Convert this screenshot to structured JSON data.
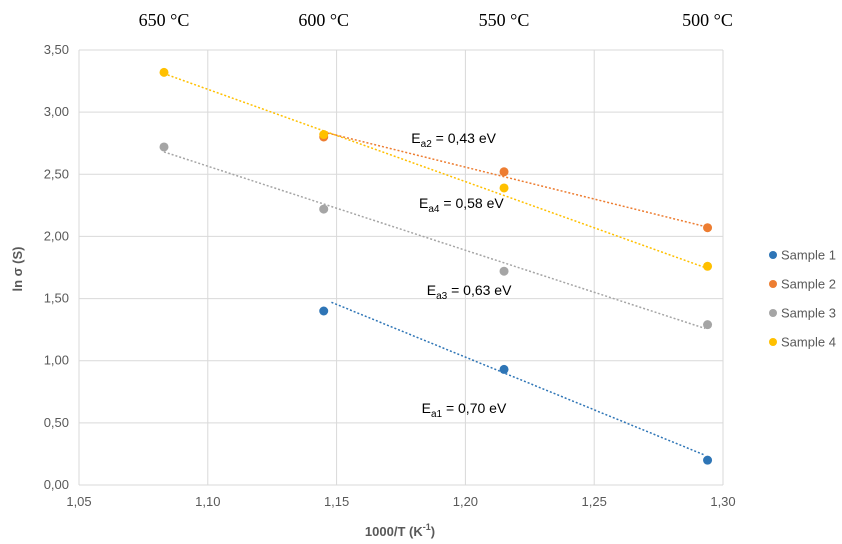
{
  "chart_data": {
    "type": "scatter",
    "top_labels": [
      "650 °C",
      "600 °C",
      "550 °C",
      "500 °C"
    ],
    "top_label_x": [
      1.083,
      1.145,
      1.215,
      1.294
    ],
    "xlabel": {
      "main": "1000/T  (K",
      "sup": "-1",
      "close": ")"
    },
    "ylabel": "ln σ (S)",
    "xlim": [
      1.05,
      1.3
    ],
    "ylim": [
      0.0,
      3.5
    ],
    "x_ticks": [
      1.05,
      1.1,
      1.15,
      1.2,
      1.25,
      1.3
    ],
    "x_tick_labels": [
      "1,05",
      "1,10",
      "1,15",
      "1,20",
      "1,25",
      "1,30"
    ],
    "y_ticks": [
      0,
      0.5,
      1.0,
      1.5,
      2.0,
      2.5,
      3.0,
      3.5
    ],
    "y_tick_labels": [
      "0,00",
      "0,50",
      "1,00",
      "1,50",
      "2,00",
      "2,50",
      "3,00",
      "3,50"
    ],
    "grid": true,
    "legend_position": "right",
    "series": [
      {
        "name": "Sample 1",
        "color": "#2e75b6",
        "x": [
          1.145,
          1.215,
          1.294
        ],
        "y": [
          1.4,
          0.93,
          0.2
        ],
        "trend": [
          [
            1.148,
            1.47
          ],
          [
            1.293,
            0.24
          ]
        ]
      },
      {
        "name": "Sample 2",
        "color": "#ed7d31",
        "x": [
          1.145,
          1.215,
          1.294
        ],
        "y": [
          2.8,
          2.52,
          2.07
        ],
        "trend": [
          [
            1.145,
            2.84
          ],
          [
            1.293,
            2.08
          ]
        ]
      },
      {
        "name": "Sample 3",
        "color": "#a5a5a5",
        "x": [
          1.083,
          1.145,
          1.215,
          1.294
        ],
        "y": [
          2.72,
          2.22,
          1.72,
          1.29
        ],
        "trend": [
          [
            1.083,
            2.68
          ],
          [
            1.293,
            1.26
          ]
        ]
      },
      {
        "name": "Sample 4",
        "color": "#ffc000",
        "x": [
          1.083,
          1.145,
          1.215,
          1.294
        ],
        "y": [
          3.32,
          2.82,
          2.39,
          1.76
        ],
        "trend": [
          [
            1.083,
            3.31
          ],
          [
            1.293,
            1.75
          ]
        ]
      }
    ],
    "annotations": [
      {
        "text": "E",
        "sub": "a2",
        "value": " = 0,43 eV",
        "x": 1.179,
        "y": 2.75
      },
      {
        "text": "E",
        "sub": "a4",
        "value": " = 0,58 eV",
        "x": 1.182,
        "y": 2.23
      },
      {
        "text": "E",
        "sub": "a3",
        "value": " = 0,63 eV",
        "x": 1.185,
        "y": 1.53
      },
      {
        "text": "E",
        "sub": "a1",
        "value": " = 0,70 eV",
        "x": 1.183,
        "y": 0.58
      }
    ]
  }
}
